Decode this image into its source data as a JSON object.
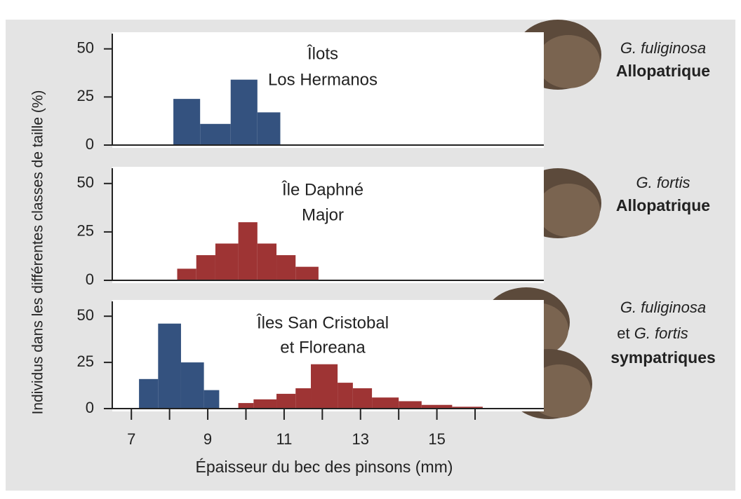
{
  "chart_data": [
    {
      "type": "histogram",
      "title": [
        "Îlots",
        "Los Hermanos"
      ],
      "ylabel": "Individus dans les différentes classes de taille (%)",
      "xlim": [
        6.5,
        17.8
      ],
      "ylim": [
        0,
        55
      ],
      "yticks": [
        0,
        25,
        50
      ],
      "series": [
        {
          "color": "#34527f",
          "bins": [
            8.1,
            8.8,
            9.6,
            10.3,
            10.9
          ],
          "counts": [
            24,
            11,
            34,
            17
          ]
        }
      ],
      "annotation": {
        "species": [
          "G. fuliginosa"
        ],
        "status": "Allopatrique"
      }
    },
    {
      "type": "histogram",
      "title": [
        "Île Daphné",
        "Major"
      ],
      "xlim": [
        6.5,
        17.8
      ],
      "ylim": [
        0,
        55
      ],
      "yticks": [
        0,
        25,
        50
      ],
      "series": [
        {
          "color": "#9e3434",
          "bins": [
            8.2,
            8.7,
            9.2,
            9.8,
            10.3,
            10.8,
            11.3,
            11.9
          ],
          "counts": [
            6,
            13,
            19,
            30,
            19,
            13,
            7
          ]
        }
      ],
      "annotation": {
        "species": [
          "G. fortis"
        ],
        "status": "Allopatrique"
      }
    },
    {
      "type": "histogram",
      "title": [
        "Îles San Cristobal",
        "et Floreana"
      ],
      "xlabel": "Épaisseur du bec des pinsons (mm)",
      "xlim": [
        6.5,
        17.8
      ],
      "ylim": [
        0,
        55
      ],
      "yticks": [
        0,
        25,
        50
      ],
      "xticks": [
        7,
        9,
        11,
        13,
        15
      ],
      "xminorticks": [
        8,
        10,
        12,
        14,
        16
      ],
      "series": [
        {
          "color": "#34527f",
          "bins": [
            7.2,
            7.7,
            8.3,
            8.9,
            9.3
          ],
          "counts": [
            16,
            46,
            25,
            10
          ]
        },
        {
          "color": "#9e3434",
          "bins": [
            9.8,
            10.2,
            10.8,
            11.3,
            11.7,
            12.4,
            12.8,
            13.3,
            14.0,
            14.6,
            15.4,
            16.2
          ],
          "counts": [
            3,
            5,
            8,
            11,
            24,
            14,
            11,
            6,
            4,
            2,
            1
          ]
        }
      ],
      "annotation": {
        "species": [
          "G. fuliginosa",
          "G. fortis"
        ],
        "connector": "et",
        "status": "sympatriques"
      }
    }
  ]
}
